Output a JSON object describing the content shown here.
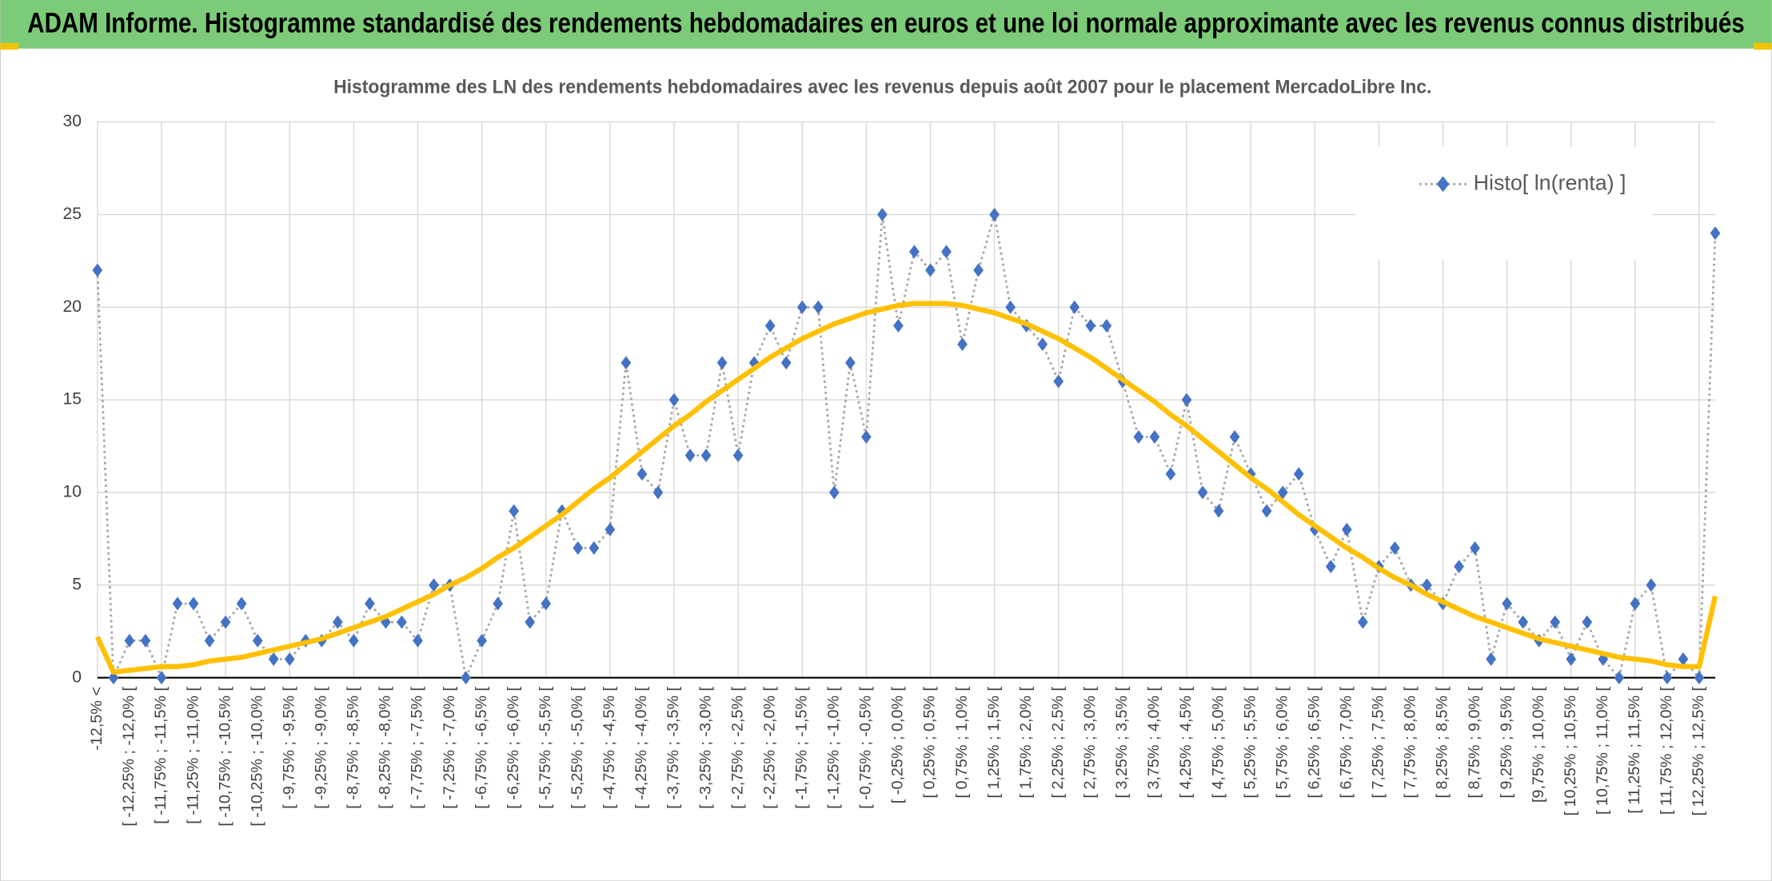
{
  "chart_data": {
    "type": "line",
    "header": "ADAM Informe. Histogramme standardisé des rendements hebdomadaires en euros et une loi normale approximante avec les revenus connus distribués",
    "title": "Histogramme des LN des rendements hebdomadaires avec les revenus depuis août 2007 pour le placement MercadoLibre Inc.",
    "categories": [
      "-12,5% <",
      null,
      "[ -12,25% ; -12,0% [",
      null,
      "[ -11,75% ; -11,5% [",
      null,
      "[ -11,25% ; -11,0% [",
      null,
      "[ -10,75% ; -10,5% [",
      null,
      "[ -10,25% ; -10,0% [",
      null,
      "[ -9,75% ; -9,5% [",
      null,
      "[ -9,25% ; -9,0% [",
      null,
      "[ -8,75% ; -8,5% [",
      null,
      "[ -8,25% ; -8,0% [",
      null,
      "[ -7,75% ; -7,5% [",
      null,
      "[ -7,25% ; -7,0% [",
      null,
      "[ -6,75% ; -6,5% [",
      null,
      "[ -6,25% ; -6,0% [",
      null,
      "[ -5,75% ; -5,5% [",
      null,
      "[ -5,25% ; -5,0% [",
      null,
      "[ -4,75% ; -4,5% [",
      null,
      "[ -4,25% ; -4,0% [",
      null,
      "[ -3,75% ; -3,5% [",
      null,
      "[ -3,25% ; -3,0% [",
      null,
      "[ -2,75% ; -2,5% [",
      null,
      "[ -2,25% ; -2,0% [",
      null,
      "[ -1,75% ; -1,5% [",
      null,
      "[ -1,25% ; -1,0% [",
      null,
      "[ -0,75% ; -0,5% [",
      null,
      "[ -0,25% ; 0,0% [",
      null,
      "[ 0,25% ; 0,5% [",
      null,
      "[ 0,75% ; 1,0% [",
      null,
      "[ 1,25% ; 1,5% [",
      null,
      "[ 1,75% ; 2,0% [",
      null,
      "[ 2,25% ; 2,5% [",
      null,
      "[ 2,75% ; 3,0% [",
      null,
      "[ 3,25% ; 3,5% [",
      null,
      "[ 3,75% ; 4,0% [",
      null,
      "[ 4,25% ; 4,5% [",
      null,
      "[ 4,75% ; 5,0% [",
      null,
      "[ 5,25% ; 5,5% [",
      null,
      "[ 5,75% ; 6,0% [",
      null,
      "[ 6,25% ; 6,5% [",
      null,
      "[ 6,75% ; 7,0% [",
      null,
      "[ 7,25% ; 7,5% [",
      null,
      "[ 7,75% ; 8,0% [",
      null,
      "[ 8,25% ; 8,5% [",
      null,
      "[ 8,75% ; 9,0% [",
      null,
      "[ 9,25% ; 9,5% [",
      null,
      "[9,75% ; 10,0% [",
      null,
      "[ 10,25% ; 10,5% [",
      null,
      "[ 10,75% ; 11,0% [",
      null,
      "[ 11,25% ; 11,5% [",
      null,
      "[ 11,75% ; 12,0% [",
      null,
      "[ 12,25% ; 12,5% [",
      null
    ],
    "series": [
      {
        "name": "Histo[ ln(renta) ]",
        "color": "#4472c4",
        "line_color": "#a6a6a6",
        "values": [
          22,
          0,
          2,
          2,
          0,
          4,
          4,
          2,
          3,
          4,
          2,
          1,
          1,
          2,
          2,
          3,
          2,
          4,
          3,
          3,
          2,
          5,
          5,
          0,
          2,
          4,
          9,
          3,
          4,
          9,
          7,
          7,
          8,
          17,
          11,
          10,
          15,
          12,
          12,
          17,
          12,
          17,
          19,
          17,
          20,
          20,
          10,
          17,
          13,
          25,
          19,
          23,
          22,
          23,
          18,
          22,
          25,
          20,
          19,
          18,
          16,
          20,
          19,
          19,
          16,
          13,
          13,
          11,
          15,
          10,
          9,
          13,
          11,
          9,
          10,
          11,
          8,
          6,
          8,
          3,
          6,
          7,
          5,
          5,
          4,
          6,
          7,
          1,
          4,
          3,
          2,
          3,
          1,
          3,
          1,
          0,
          4,
          5,
          0,
          1,
          0,
          24
        ]
      },
      {
        "color": "#ffc000",
        "values": [
          2.2,
          0.3,
          0.4,
          0.5,
          0.6,
          0.6,
          0.7,
          0.9,
          1.0,
          1.1,
          1.3,
          1.5,
          1.7,
          1.9,
          2.1,
          2.4,
          2.7,
          3.0,
          3.3,
          3.7,
          4.1,
          4.5,
          5.0,
          5.4,
          5.9,
          6.5,
          7.0,
          7.6,
          8.2,
          8.8,
          9.5,
          10.2,
          10.8,
          11.5,
          12.2,
          12.9,
          13.6,
          14.2,
          14.9,
          15.5,
          16.1,
          16.7,
          17.3,
          17.8,
          18.3,
          18.7,
          19.1,
          19.4,
          19.7,
          19.9,
          20.1,
          20.2,
          20.2,
          20.2,
          20.1,
          19.9,
          19.7,
          19.4,
          19.1,
          18.7,
          18.3,
          17.8,
          17.3,
          16.7,
          16.1,
          15.5,
          14.9,
          14.2,
          13.6,
          12.9,
          12.2,
          11.5,
          10.8,
          10.2,
          9.5,
          8.8,
          8.2,
          7.6,
          7.0,
          6.5,
          5.9,
          5.4,
          5.0,
          4.5,
          4.1,
          3.7,
          3.3,
          3.0,
          2.7,
          2.4,
          2.1,
          1.9,
          1.7,
          1.5,
          1.3,
          1.1,
          1.0,
          0.9,
          0.7,
          0.6,
          0.6,
          4.4
        ]
      }
    ],
    "ylim": [
      0,
      30
    ],
    "yticks": [
      0,
      5,
      10,
      15,
      20,
      25,
      30
    ],
    "grid": true,
    "legend": "top-right"
  }
}
